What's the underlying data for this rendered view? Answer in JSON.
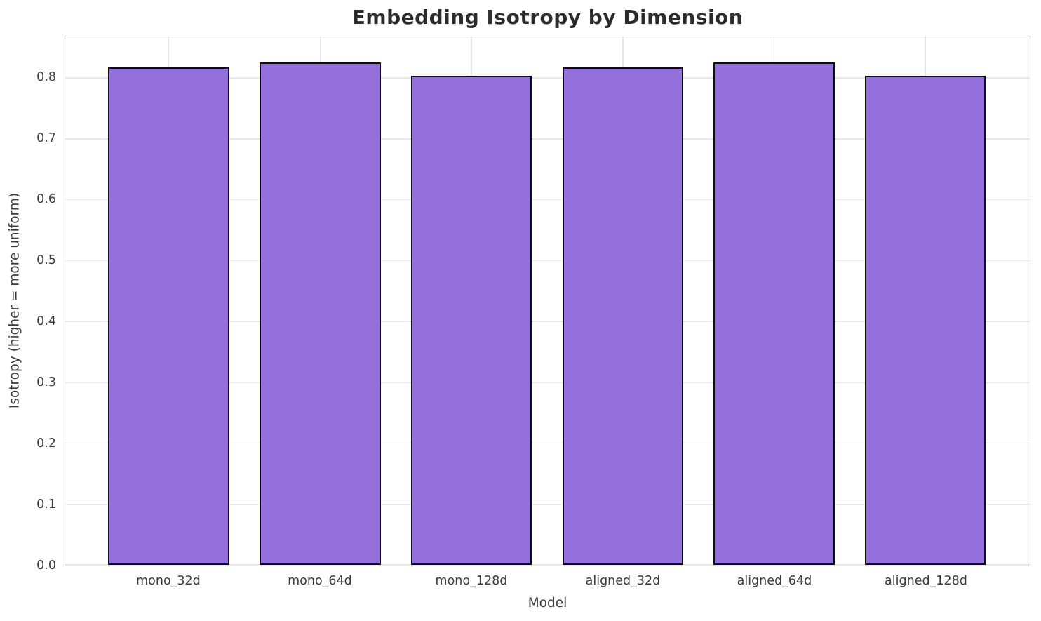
{
  "figure": {
    "title": "Embedding Isotropy by Dimension",
    "xlabel": "Model",
    "ylabel": "Isotropy (higher = more uniform)"
  },
  "chart_data": {
    "type": "bar",
    "categories": [
      "mono_32d",
      "mono_64d",
      "mono_128d",
      "aligned_32d",
      "aligned_64d",
      "aligned_128d"
    ],
    "values": [
      0.817,
      0.825,
      0.804,
      0.817,
      0.825,
      0.804
    ],
    "title": "Embedding Isotropy by Dimension",
    "xlabel": "Model",
    "ylabel": "Isotropy (higher = more uniform)",
    "ylim": [
      0,
      0.868
    ],
    "yticks": [
      "0.0",
      "0.1",
      "0.2",
      "0.3",
      "0.4",
      "0.5",
      "0.6",
      "0.7",
      "0.8"
    ],
    "xlim": [
      -0.685,
      5.69
    ],
    "bar_width": 0.8,
    "grid": true,
    "legend": "none",
    "colors": {
      "bar_fill": "#9370DB",
      "bar_edge": "#0d0d0d",
      "grid_line": "#e7e7e7",
      "spine": "#cccccc",
      "tick_text": "#3b3b3b",
      "title_text": "#2b2b2b",
      "background": "#ffffff"
    }
  }
}
